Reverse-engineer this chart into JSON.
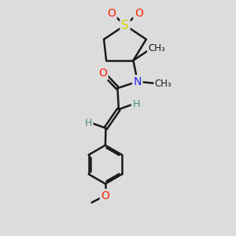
{
  "bg_color": "#dcdcdc",
  "bond_color": "#1a1a1a",
  "bond_width": 1.8,
  "atom_colors": {
    "S": "#d4d400",
    "O": "#ff2200",
    "N": "#2222ee",
    "C": "#1a1a1a",
    "H": "#4a8888"
  },
  "font_size": 10,
  "fig_size": [
    3.0,
    3.0
  ],
  "dpi": 100
}
